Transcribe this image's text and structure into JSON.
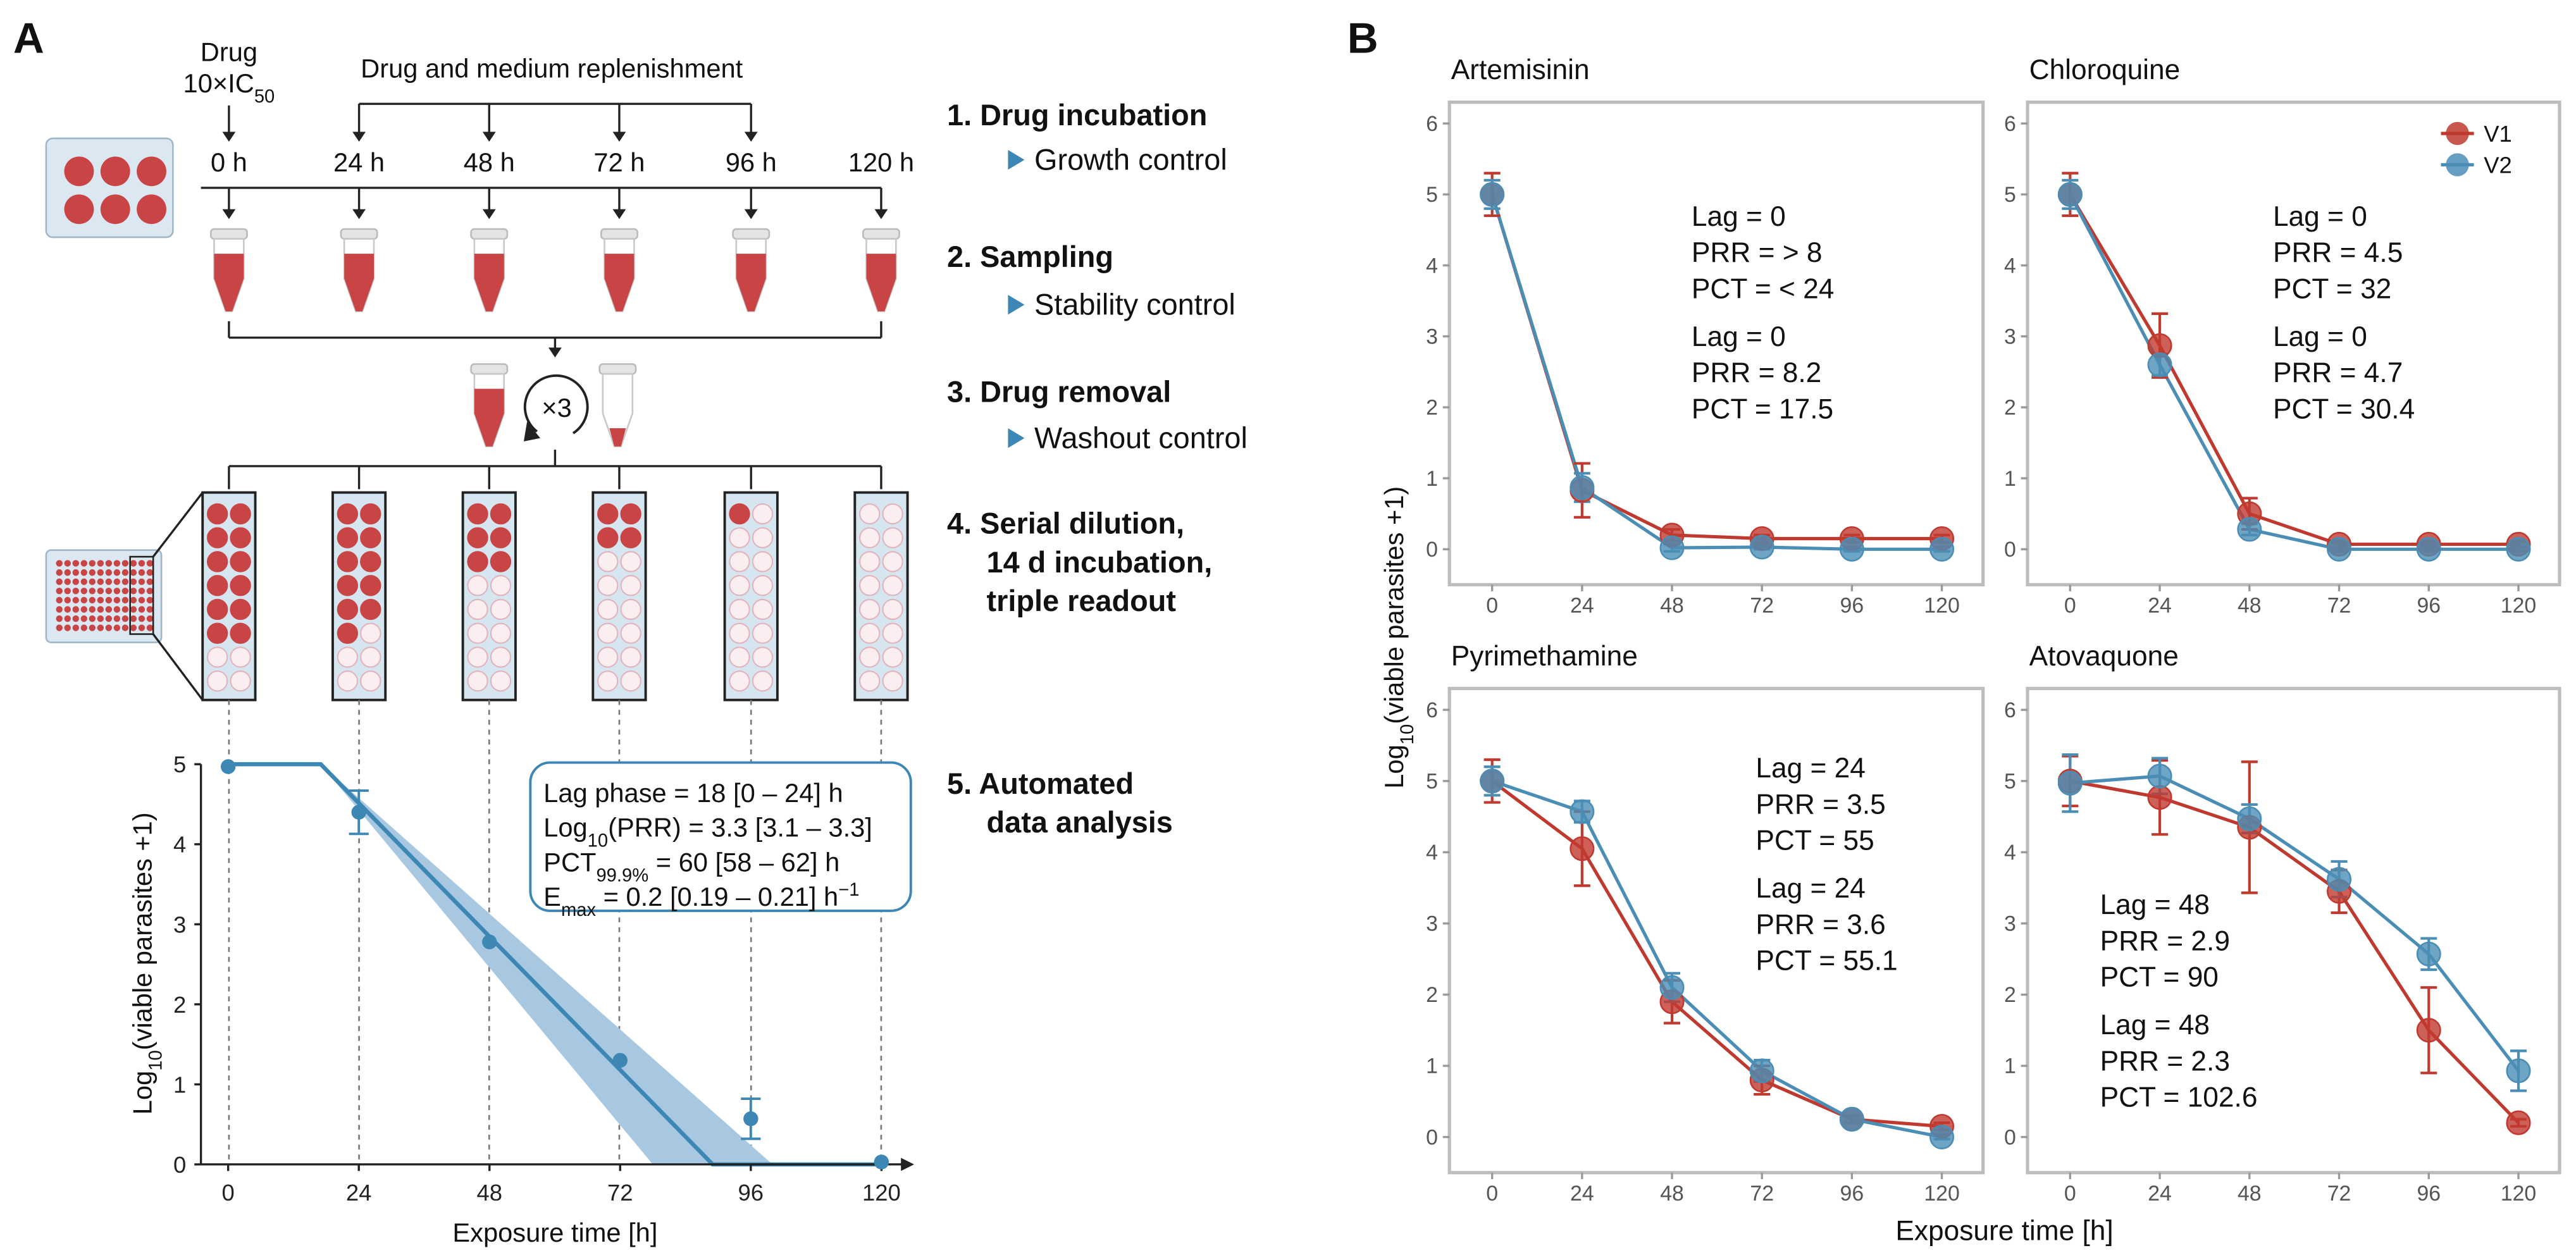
{
  "panel_labels": [
    "A",
    "B"
  ],
  "schematic": {
    "drug": "Drug",
    "dose": [
      "10×IC",
      {
        "sub": "50"
      }
    ],
    "replenishment": "Drug and medium replenishment",
    "timepoints": [
      "0 h",
      "24 h",
      "48 h",
      "72 h",
      "96 h",
      "120 h"
    ],
    "repeat": "×3",
    "steps": [
      {
        "title": [
          "1. Drug incubation"
        ],
        "control": "Growth control"
      },
      {
        "title": [
          "2. Sampling"
        ],
        "control": "Stability control"
      },
      {
        "title": [
          "3. Drug removal"
        ],
        "control": "Washout control"
      },
      {
        "title": [
          "4. Serial dilution,",
          "14 d incubation,",
          "triple readout"
        ]
      },
      {
        "title": [
          "5. Automated",
          "data analysis"
        ]
      }
    ]
  },
  "chart_data": [
    {
      "type": "scatter",
      "x": [
        0,
        24,
        48,
        72,
        96,
        120
      ],
      "values": [
        4.97,
        4.4,
        2.78,
        1.3,
        0.57,
        0.03
      ],
      "errors": [
        null,
        0.27,
        null,
        null,
        0.25,
        null
      ],
      "fit": {
        "x": [
          0,
          17,
          89,
          120
        ],
        "values": [
          5,
          5,
          0,
          0
        ]
      },
      "band": {
        "upper": {
          "x": [
            17,
            100
          ],
          "values": [
            5,
            0
          ]
        },
        "lower": {
          "x": [
            17,
            78
          ],
          "values": [
            5,
            0
          ]
        }
      },
      "color": "#3d87b5",
      "band_color": "#a8c8e2",
      "xlim": [
        -5,
        126
      ],
      "ylim": [
        0,
        5
      ],
      "xticks": [
        0,
        24,
        48,
        72,
        96,
        120
      ],
      "yticks": [
        0,
        1,
        2,
        3,
        4,
        5
      ],
      "xlabel": "Exposure time [h]",
      "ylabel": [
        "Log",
        {
          "sub": "10"
        },
        "(viable parasites +1)"
      ],
      "annotation": [
        [
          "Lag phase = 18 [0 – 24] h"
        ],
        [
          "Log",
          {
            "sub": "10"
          },
          "(PRR) = 3.3 [3.1 – 3.3]"
        ],
        [
          "PCT",
          {
            "sub": "99.9%"
          },
          " = 60 [58 – 62] h"
        ],
        [
          "E",
          {
            "sub": "max"
          },
          " = 0.2 [0.19 – 0.21] h",
          {
            "sup": "−1"
          }
        ]
      ]
    },
    {
      "type": "line",
      "title": "Artemisinin",
      "x": [
        0,
        24,
        48,
        72,
        96,
        120
      ],
      "xlim": [
        -11.4,
        131
      ],
      "ylim": [
        -0.5,
        6.3
      ],
      "xticks": [
        0,
        24,
        48,
        72,
        96,
        120
      ],
      "yticks": [
        0,
        1,
        2,
        3,
        4,
        5,
        6
      ],
      "series": [
        {
          "name": "V1",
          "color": "#c0392f",
          "values": [
            5,
            0.83,
            0.2,
            0.15,
            0.15,
            0.15
          ],
          "errors": [
            0.3,
            0.38,
            0.08,
            0.05,
            0.05,
            0.05
          ]
        },
        {
          "name": "V2",
          "color": "#4a8db5",
          "values": [
            5,
            0.87,
            0.02,
            0.03,
            0,
            0
          ],
          "errors": [
            0.2,
            0.2,
            0.05,
            0.03,
            0.03,
            0.03
          ]
        }
      ],
      "annotations": [
        {
          "series": 0,
          "lines": [
            "Lag = 0",
            "PRR = > 8",
            "PCT = < 24"
          ]
        },
        {
          "series": 1,
          "lines": [
            "Lag = 0",
            "PRR = 8.2",
            "PCT = 17.5"
          ]
        }
      ]
    },
    {
      "type": "line",
      "title": "Chloroquine",
      "x": [
        0,
        24,
        48,
        72,
        96,
        120
      ],
      "xlim": [
        -11.4,
        131
      ],
      "ylim": [
        -0.5,
        6.3
      ],
      "xticks": [
        0,
        24,
        48,
        72,
        96,
        120
      ],
      "yticks": [
        0,
        1,
        2,
        3,
        4,
        5,
        6
      ],
      "legend": "upper right",
      "series": [
        {
          "name": "V1",
          "color": "#c0392f",
          "values": [
            5,
            2.87,
            0.5,
            0.07,
            0.07,
            0.07
          ],
          "errors": [
            0.3,
            0.45,
            0.22,
            0.04,
            0.04,
            0.04
          ]
        },
        {
          "name": "V2",
          "color": "#4a8db5",
          "values": [
            5,
            2.6,
            0.28,
            0,
            0,
            0
          ],
          "errors": [
            0.2,
            0.15,
            0.08,
            0.03,
            0.03,
            0.03
          ]
        }
      ],
      "annotations": [
        {
          "series": 0,
          "lines": [
            "Lag = 0",
            "PRR = 4.5",
            "PCT = 32"
          ]
        },
        {
          "series": 1,
          "lines": [
            "Lag = 0",
            "PRR = 4.7",
            "PCT = 30.4"
          ]
        }
      ]
    },
    {
      "type": "line",
      "title": "Pyrimethamine",
      "x": [
        0,
        24,
        48,
        72,
        96,
        120
      ],
      "xlim": [
        -11.4,
        131
      ],
      "ylim": [
        -0.5,
        6.3
      ],
      "xticks": [
        0,
        24,
        48,
        72,
        96,
        120
      ],
      "yticks": [
        0,
        1,
        2,
        3,
        4,
        5,
        6
      ],
      "series": [
        {
          "name": "V1",
          "color": "#c0392f",
          "values": [
            5,
            4.05,
            1.9,
            0.8,
            0.25,
            0.15
          ],
          "errors": [
            0.3,
            0.52,
            0.3,
            0.2,
            0.05,
            0.05
          ]
        },
        {
          "name": "V2",
          "color": "#4a8db5",
          "values": [
            5,
            4.57,
            2.1,
            0.93,
            0.25,
            0
          ],
          "errors": [
            0.2,
            0.15,
            0.2,
            0.15,
            0.05,
            0.03
          ]
        }
      ],
      "annotations": [
        {
          "series": 0,
          "lines": [
            "Lag = 24",
            "PRR = 3.5",
            "PCT = 55"
          ]
        },
        {
          "series": 1,
          "lines": [
            "Lag = 24",
            "PRR = 3.6",
            "PCT = 55.1"
          ]
        }
      ]
    },
    {
      "type": "line",
      "title": "Atovaquone",
      "x": [
        0,
        24,
        48,
        72,
        96,
        120
      ],
      "xlim": [
        -11.4,
        131
      ],
      "ylim": [
        -0.5,
        6.3
      ],
      "xticks": [
        0,
        24,
        48,
        72,
        96,
        120
      ],
      "yticks": [
        0,
        1,
        2,
        3,
        4,
        5,
        6
      ],
      "series": [
        {
          "name": "V1",
          "color": "#c0392f",
          "values": [
            5,
            4.77,
            4.35,
            3.45,
            1.5,
            0.2
          ],
          "errors": [
            0.35,
            0.52,
            0.92,
            0.3,
            0.6,
            0.05
          ]
        },
        {
          "name": "V2",
          "color": "#4a8db5",
          "values": [
            4.97,
            5.07,
            4.47,
            3.62,
            2.57,
            0.93
          ],
          "errors": [
            0.4,
            0.25,
            0.2,
            0.25,
            0.22,
            0.28
          ]
        }
      ],
      "annotations": [
        {
          "series": 0,
          "lines": [
            "Lag = 48",
            "PRR = 2.9",
            "PCT = 90"
          ]
        },
        {
          "series": 1,
          "lines": [
            "Lag = 48",
            "PRR = 2.3",
            "PCT = 102.6"
          ]
        }
      ]
    }
  ],
  "panel_b": {
    "ylabel": [
      "Log",
      {
        "sub": "10"
      },
      "(viable parasites +1)"
    ],
    "xlabel": "Exposure time [h]"
  }
}
